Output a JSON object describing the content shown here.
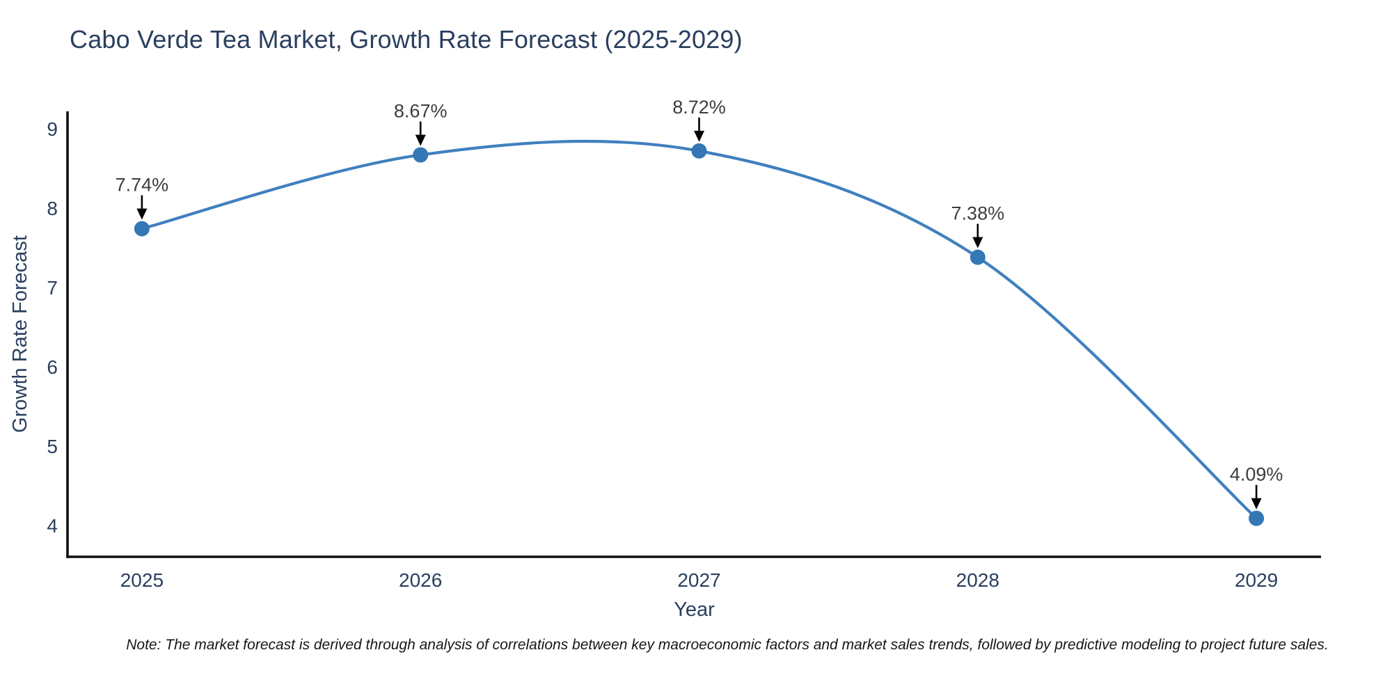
{
  "chart_data": {
    "type": "line",
    "title": "Cabo Verde Tea Market, Growth Rate Forecast (2025-2029)",
    "xlabel": "Year",
    "ylabel": "Growth Rate Forecast",
    "x": [
      2025,
      2026,
      2027,
      2028,
      2029
    ],
    "xticks": [
      "2025",
      "2026",
      "2027",
      "2028",
      "2029"
    ],
    "yticks": [
      4,
      5,
      6,
      7,
      8,
      9
    ],
    "series": [
      {
        "name": "Growth Rate Forecast",
        "values": [
          7.74,
          8.67,
          8.72,
          7.38,
          4.09
        ],
        "point_labels": [
          "7.74%",
          "8.67%",
          "8.72%",
          "7.38%",
          "4.09%"
        ]
      }
    ],
    "xlim": [
      2024.733,
      2029.232
    ],
    "ylim": [
      3.605,
      9.219
    ],
    "grid": false,
    "legend": "none",
    "line_shape": "spline",
    "annotation_style": "value label with downward arrow onto each point",
    "colors": {
      "line": "#4080bf",
      "marker": "#3577b5",
      "axis": "#0f0f0f",
      "tick_text": "#2a3f5f",
      "annotation_text": "#3d3d3d",
      "arrow": "#000000",
      "background": "#ffffff"
    },
    "note": "Note: The market forecast is derived through analysis of correlations between key macroeconomic factors and market sales trends, followed by predictive modeling to project future sales."
  }
}
